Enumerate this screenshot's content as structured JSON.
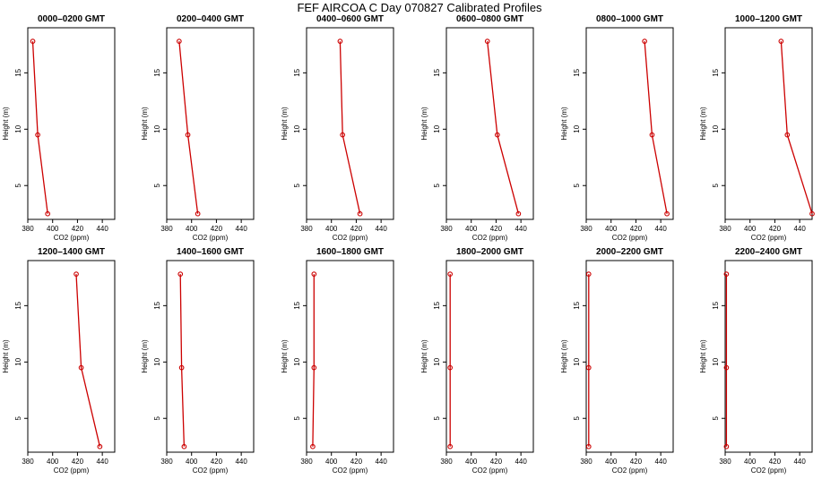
{
  "title": "FEF AIRCOA C  Day 070827  Calibrated Profiles",
  "colors": {
    "profile_line": "#cc0000",
    "axes": "#000000",
    "background": "#ffffff"
  },
  "chart_data": [
    {
      "type": "line",
      "title": "0000–0200 GMT",
      "xlabel": "CO2 (ppm)",
      "ylabel": "Height (m)",
      "xlim": [
        380,
        450
      ],
      "ylim": [
        2,
        19
      ],
      "xticks": [
        380,
        400,
        420,
        440
      ],
      "yticks": [
        5,
        10,
        15
      ],
      "grid": false,
      "series": [
        {
          "x": [
            396,
            388,
            384
          ],
          "y": [
            2.5,
            9.5,
            17.8
          ]
        }
      ]
    },
    {
      "type": "line",
      "title": "0200–0400 GMT",
      "xlabel": "CO2 (ppm)",
      "ylabel": "Height (m)",
      "xlim": [
        380,
        450
      ],
      "ylim": [
        2,
        19
      ],
      "xticks": [
        380,
        400,
        420,
        440
      ],
      "yticks": [
        5,
        10,
        15
      ],
      "grid": false,
      "series": [
        {
          "x": [
            405,
            397,
            390
          ],
          "y": [
            2.5,
            9.5,
            17.8
          ]
        }
      ]
    },
    {
      "type": "line",
      "title": "0400–0600 GMT",
      "xlabel": "CO2 (ppm)",
      "ylabel": "Height (m)",
      "xlim": [
        380,
        450
      ],
      "ylim": [
        2,
        19
      ],
      "xticks": [
        380,
        400,
        420,
        440
      ],
      "yticks": [
        5,
        10,
        15
      ],
      "grid": false,
      "series": [
        {
          "x": [
            423,
            409,
            407
          ],
          "y": [
            2.5,
            9.5,
            17.8
          ]
        }
      ]
    },
    {
      "type": "line",
      "title": "0600–0800 GMT",
      "xlabel": "CO2 (ppm)",
      "ylabel": "Height (m)",
      "xlim": [
        380,
        450
      ],
      "ylim": [
        2,
        19
      ],
      "xticks": [
        380,
        400,
        420,
        440
      ],
      "yticks": [
        5,
        10,
        15
      ],
      "grid": false,
      "series": [
        {
          "x": [
            438,
            421,
            413
          ],
          "y": [
            2.5,
            9.5,
            17.8
          ]
        }
      ]
    },
    {
      "type": "line",
      "title": "0800–1000 GMT",
      "xlabel": "CO2 (ppm)",
      "ylabel": "Height (m)",
      "xlim": [
        380,
        450
      ],
      "ylim": [
        2,
        19
      ],
      "xticks": [
        380,
        400,
        420,
        440
      ],
      "yticks": [
        5,
        10,
        15
      ],
      "grid": false,
      "series": [
        {
          "x": [
            445,
            433,
            427
          ],
          "y": [
            2.5,
            9.5,
            17.8
          ]
        }
      ]
    },
    {
      "type": "line",
      "title": "1000–1200 GMT",
      "xlabel": "CO2 (ppm)",
      "ylabel": "Height (m)",
      "xlim": [
        380,
        450
      ],
      "ylim": [
        2,
        19
      ],
      "xticks": [
        380,
        400,
        420,
        440
      ],
      "yticks": [
        5,
        10,
        15
      ],
      "grid": false,
      "series": [
        {
          "x": [
            450,
            430,
            425
          ],
          "y": [
            2.5,
            9.5,
            17.8
          ]
        }
      ]
    },
    {
      "type": "line",
      "title": "1200–1400 GMT",
      "xlabel": "CO2 (ppm)",
      "ylabel": "Height (m)",
      "xlim": [
        380,
        450
      ],
      "ylim": [
        2,
        19
      ],
      "xticks": [
        380,
        400,
        420,
        440
      ],
      "yticks": [
        5,
        10,
        15
      ],
      "grid": false,
      "series": [
        {
          "x": [
            438,
            423,
            419
          ],
          "y": [
            2.5,
            9.5,
            17.8
          ]
        }
      ]
    },
    {
      "type": "line",
      "title": "1400–1600 GMT",
      "xlabel": "CO2 (ppm)",
      "ylabel": "Height (m)",
      "xlim": [
        380,
        450
      ],
      "ylim": [
        2,
        19
      ],
      "xticks": [
        380,
        400,
        420,
        440
      ],
      "yticks": [
        5,
        10,
        15
      ],
      "grid": false,
      "series": [
        {
          "x": [
            394,
            392,
            391
          ],
          "y": [
            2.5,
            9.5,
            17.8
          ]
        }
      ]
    },
    {
      "type": "line",
      "title": "1600–1800 GMT",
      "xlabel": "CO2 (ppm)",
      "ylabel": "Height (m)",
      "xlim": [
        380,
        450
      ],
      "ylim": [
        2,
        19
      ],
      "xticks": [
        380,
        400,
        420,
        440
      ],
      "yticks": [
        5,
        10,
        15
      ],
      "grid": false,
      "series": [
        {
          "x": [
            385,
            386,
            386
          ],
          "y": [
            2.5,
            9.5,
            17.8
          ]
        }
      ]
    },
    {
      "type": "line",
      "title": "1800–2000 GMT",
      "xlabel": "CO2 (ppm)",
      "ylabel": "Height (m)",
      "xlim": [
        380,
        450
      ],
      "ylim": [
        2,
        19
      ],
      "xticks": [
        380,
        400,
        420,
        440
      ],
      "yticks": [
        5,
        10,
        15
      ],
      "grid": false,
      "series": [
        {
          "x": [
            383,
            383,
            383
          ],
          "y": [
            2.5,
            9.5,
            17.8
          ]
        }
      ]
    },
    {
      "type": "line",
      "title": "2000–2200 GMT",
      "xlabel": "CO2 (ppm)",
      "ylabel": "Height (m)",
      "xlim": [
        380,
        450
      ],
      "ylim": [
        2,
        19
      ],
      "xticks": [
        380,
        400,
        420,
        440
      ],
      "yticks": [
        5,
        10,
        15
      ],
      "grid": false,
      "series": [
        {
          "x": [
            382,
            382,
            382
          ],
          "y": [
            2.5,
            9.5,
            17.8
          ]
        }
      ]
    },
    {
      "type": "line",
      "title": "2200–2400 GMT",
      "xlabel": "CO2 (ppm)",
      "ylabel": "Height (m)",
      "xlim": [
        380,
        450
      ],
      "ylim": [
        2,
        19
      ],
      "xticks": [
        380,
        400,
        420,
        440
      ],
      "yticks": [
        5,
        10,
        15
      ],
      "grid": false,
      "series": [
        {
          "x": [
            381,
            381,
            381
          ],
          "y": [
            2.5,
            9.5,
            17.8
          ]
        }
      ]
    }
  ]
}
